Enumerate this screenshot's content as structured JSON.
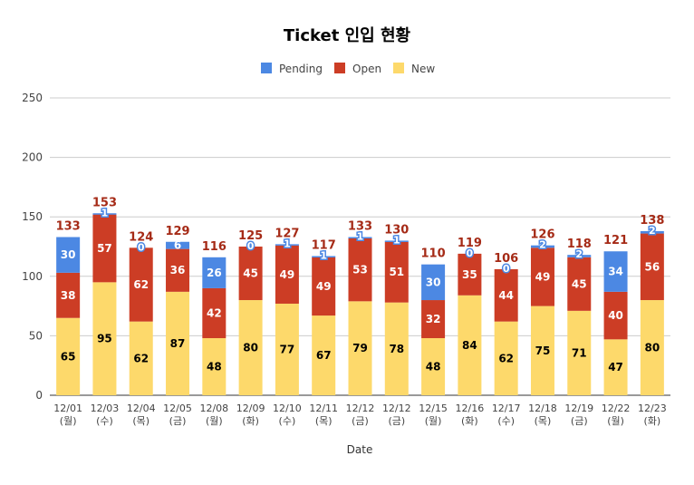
{
  "chart_data": {
    "type": "bar",
    "stacked": true,
    "title": "Ticket 인입 현황",
    "xlabel": "Date",
    "ylabel": "",
    "ylim": [
      0,
      250
    ],
    "yticks": [
      0,
      50,
      100,
      150,
      200,
      250
    ],
    "grid": true,
    "legend_position": "top",
    "categories": [
      [
        "12/01",
        "(월)"
      ],
      [
        "12/03",
        "(수)"
      ],
      [
        "12/04",
        "(목)"
      ],
      [
        "12/05",
        "(금)"
      ],
      [
        "12/08",
        "(월)"
      ],
      [
        "12/09",
        "(화)"
      ],
      [
        "12/10",
        "(수)"
      ],
      [
        "12/11",
        "(목)"
      ],
      [
        "12/12",
        "(금)"
      ],
      [
        "12/12",
        "(금)"
      ],
      [
        "12/15",
        "(월)"
      ],
      [
        "12/16",
        "(화)"
      ],
      [
        "12/17",
        "(수)"
      ],
      [
        "12/18",
        "(목)"
      ],
      [
        "12/19",
        "(금)"
      ],
      [
        "12/22",
        "(월)"
      ],
      [
        "12/23",
        "(화)"
      ]
    ],
    "series": [
      {
        "name": "New",
        "color": "#fdd96b",
        "values": [
          65,
          95,
          62,
          87,
          48,
          80,
          77,
          67,
          79,
          78,
          48,
          84,
          62,
          75,
          71,
          47,
          80
        ]
      },
      {
        "name": "Open",
        "color": "#cc3d25",
        "values": [
          38,
          57,
          62,
          36,
          42,
          45,
          49,
          49,
          53,
          51,
          32,
          35,
          44,
          49,
          45,
          40,
          56
        ]
      },
      {
        "name": "Pending",
        "color": "#4c88e3",
        "values": [
          30,
          1,
          0,
          6,
          26,
          0,
          1,
          1,
          1,
          1,
          30,
          0,
          0,
          2,
          2,
          34,
          2
        ]
      }
    ],
    "totals": [
      133,
      153,
      124,
      129,
      116,
      125,
      127,
      117,
      133,
      130,
      110,
      119,
      106,
      126,
      118,
      121,
      138
    ],
    "legend_order": [
      "Pending",
      "Open",
      "New"
    ],
    "total_label_color": "#a52a16"
  }
}
